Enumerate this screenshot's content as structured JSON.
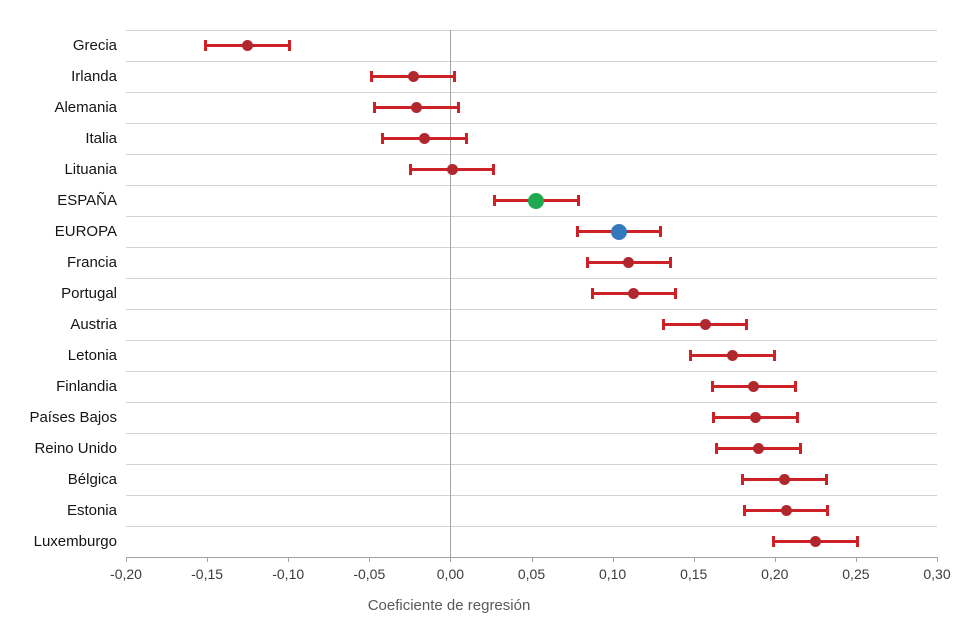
{
  "chart_data": {
    "type": "scatter",
    "subtype": "dot-whisker-coefficient-plot",
    "title": "",
    "xlabel": "Coeficiente de regresión",
    "ylabel": "",
    "xlim": [
      -0.2,
      0.3
    ],
    "grid": "horizontal",
    "legend_position": "none",
    "zero_reference_line": 0.0,
    "x_ticks": [
      -0.2,
      -0.15,
      -0.1,
      -0.05,
      0.0,
      0.05,
      0.1,
      0.15,
      0.2,
      0.25,
      0.3
    ],
    "x_tick_labels": [
      "-0,20",
      "-0,15",
      "-0,10",
      "-0,05",
      "0,00",
      "0,05",
      "0,10",
      "0,15",
      "0,20",
      "0,25",
      "0,30"
    ],
    "series": [
      {
        "name": "Grecia",
        "value": -0.125,
        "ci_low": -0.151,
        "ci_high": -0.099,
        "highlight": false
      },
      {
        "name": "Irlanda",
        "value": -0.023,
        "ci_low": -0.049,
        "ci_high": 0.003,
        "highlight": false
      },
      {
        "name": "Alemania",
        "value": -0.021,
        "ci_low": -0.047,
        "ci_high": 0.005,
        "highlight": false
      },
      {
        "name": "Italia",
        "value": -0.016,
        "ci_low": -0.042,
        "ci_high": 0.01,
        "highlight": false
      },
      {
        "name": "Lituania",
        "value": 0.001,
        "ci_low": -0.025,
        "ci_high": 0.027,
        "highlight": false
      },
      {
        "name": "ESPAÑA",
        "value": 0.053,
        "ci_low": 0.027,
        "ci_high": 0.079,
        "highlight": true,
        "marker_color": "#1fa950"
      },
      {
        "name": "EUROPA",
        "value": 0.104,
        "ci_low": 0.078,
        "ci_high": 0.13,
        "highlight": true,
        "marker_color": "#3478be"
      },
      {
        "name": "Francia",
        "value": 0.11,
        "ci_low": 0.084,
        "ci_high": 0.136,
        "highlight": false
      },
      {
        "name": "Portugal",
        "value": 0.113,
        "ci_low": 0.087,
        "ci_high": 0.139,
        "highlight": false
      },
      {
        "name": "Austria",
        "value": 0.157,
        "ci_low": 0.131,
        "ci_high": 0.183,
        "highlight": false
      },
      {
        "name": "Letonia",
        "value": 0.174,
        "ci_low": 0.148,
        "ci_high": 0.2,
        "highlight": false
      },
      {
        "name": "Finlandia",
        "value": 0.187,
        "ci_low": 0.161,
        "ci_high": 0.213,
        "highlight": false
      },
      {
        "name": "Países Bajos",
        "value": 0.188,
        "ci_low": 0.162,
        "ci_high": 0.214,
        "highlight": false
      },
      {
        "name": "Reino Unido",
        "value": 0.19,
        "ci_low": 0.164,
        "ci_high": 0.216,
        "highlight": false
      },
      {
        "name": "Bélgica",
        "value": 0.206,
        "ci_low": 0.18,
        "ci_high": 0.232,
        "highlight": false
      },
      {
        "name": "Estonia",
        "value": 0.207,
        "ci_low": 0.181,
        "ci_high": 0.233,
        "highlight": false
      },
      {
        "name": "Luxemburgo",
        "value": 0.225,
        "ci_low": 0.199,
        "ci_high": 0.251,
        "highlight": false
      }
    ],
    "colors": {
      "error_bar": "#cb2127",
      "default_marker": "#b0282e",
      "spain_marker": "#1fa950",
      "europe_marker": "#3478be",
      "gridline": "#d2d2d2",
      "axis": "#a3a3a3",
      "tick_label": "#3c3c3c",
      "category_label": "#151515",
      "axis_title": "#595959"
    }
  }
}
